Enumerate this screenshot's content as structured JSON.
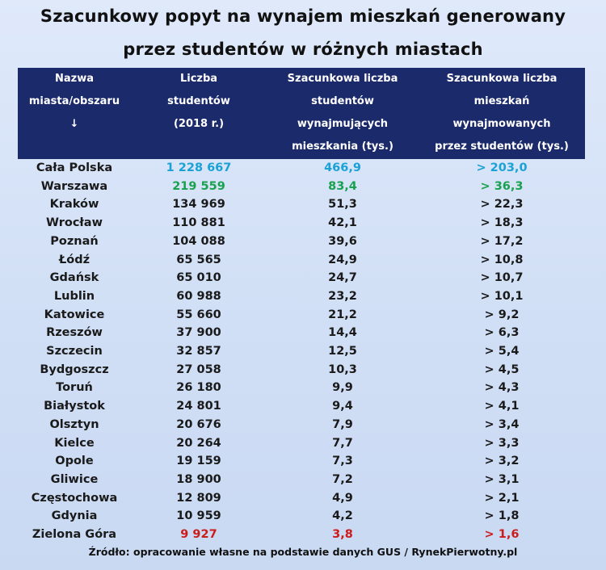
{
  "title": {
    "line1": "Szacunkowy popyt na wynajem mieszkań generowany",
    "line2": "przez studentów w różnych miastach"
  },
  "header": {
    "col1": [
      "Nazwa",
      "miasta/obszaru",
      "↓"
    ],
    "col2": [
      "Liczba",
      "studentów",
      "(2018 r.)"
    ],
    "col3": [
      "Szacunkowa liczba",
      "studentów",
      "wynajmujących",
      "mieszkania (tys.)"
    ],
    "col4": [
      "Szacunkowa liczba",
      "mieszkań",
      "wynajmowanych",
      "przez studentów (tys.)"
    ]
  },
  "rows": [
    {
      "city": "Cała Polska",
      "students": "1 228 667",
      "renting": "466,9",
      "flats": "> 203,0",
      "highlight": "blue"
    },
    {
      "city": "Warszawa",
      "students": "219 559",
      "renting": "83,4",
      "flats": "> 36,3",
      "highlight": "green"
    },
    {
      "city": "Kraków",
      "students": "134 969",
      "renting": "51,3",
      "flats": "> 22,3",
      "highlight": ""
    },
    {
      "city": "Wrocław",
      "students": "110 881",
      "renting": "42,1",
      "flats": "> 18,3",
      "highlight": ""
    },
    {
      "city": "Poznań",
      "students": "104 088",
      "renting": "39,6",
      "flats": "> 17,2",
      "highlight": ""
    },
    {
      "city": "Łódź",
      "students": "65 565",
      "renting": "24,9",
      "flats": "> 10,8",
      "highlight": ""
    },
    {
      "city": "Gdańsk",
      "students": "65 010",
      "renting": "24,7",
      "flats": "> 10,7",
      "highlight": ""
    },
    {
      "city": "Lublin",
      "students": "60 988",
      "renting": "23,2",
      "flats": "> 10,1",
      "highlight": ""
    },
    {
      "city": "Katowice",
      "students": "55 660",
      "renting": "21,2",
      "flats": "> 9,2",
      "highlight": ""
    },
    {
      "city": "Rzeszów",
      "students": "37 900",
      "renting": "14,4",
      "flats": "> 6,3",
      "highlight": ""
    },
    {
      "city": "Szczecin",
      "students": "32 857",
      "renting": "12,5",
      "flats": "> 5,4",
      "highlight": ""
    },
    {
      "city": "Bydgoszcz",
      "students": "27 058",
      "renting": "10,3",
      "flats": "> 4,5",
      "highlight": ""
    },
    {
      "city": "Toruń",
      "students": "26 180",
      "renting": "9,9",
      "flats": "> 4,3",
      "highlight": ""
    },
    {
      "city": "Białystok",
      "students": "24 801",
      "renting": "9,4",
      "flats": "> 4,1",
      "highlight": ""
    },
    {
      "city": "Olsztyn",
      "students": "20 676",
      "renting": "7,9",
      "flats": "> 3,4",
      "highlight": ""
    },
    {
      "city": "Kielce",
      "students": "20 264",
      "renting": "7,7",
      "flats": "> 3,3",
      "highlight": ""
    },
    {
      "city": "Opole",
      "students": "19 159",
      "renting": "7,3",
      "flats": "> 3,2",
      "highlight": ""
    },
    {
      "city": "Gliwice",
      "students": "18 900",
      "renting": "7,2",
      "flats": "> 3,1",
      "highlight": ""
    },
    {
      "city": "Częstochowa",
      "students": "12 809",
      "renting": "4,9",
      "flats": "> 2,1",
      "highlight": ""
    },
    {
      "city": "Gdynia",
      "students": "10 959",
      "renting": "4,2",
      "flats": "> 1,8",
      "highlight": ""
    },
    {
      "city": "Zielona Góra",
      "students": "9 927",
      "renting": "3,8",
      "flats": "> 1,6",
      "highlight": "red"
    }
  ],
  "colors": {
    "header_bg": "#1b2a6b",
    "blue": "#1aa2d6",
    "green": "#1aa14f",
    "red": "#cc1b1b"
  },
  "source": "Źródło: opracowanie własne na podstawie danych GUS / RynekPierwotny.pl"
}
